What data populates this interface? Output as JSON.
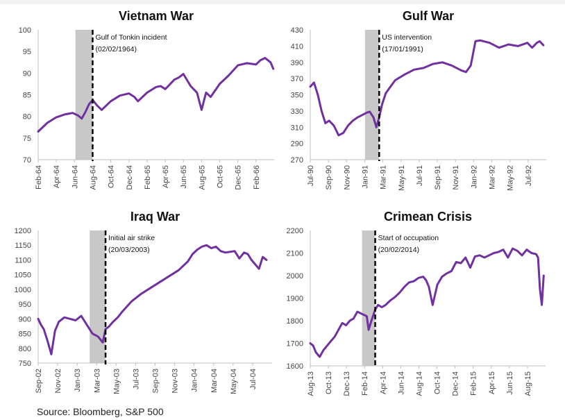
{
  "source": "Source: Bloomberg, S&P 500",
  "colors": {
    "line": "#7030a0",
    "shade": "#c8c8c8",
    "marker": "#000000"
  },
  "chart_data": [
    {
      "type": "line",
      "title": "Vietnam War",
      "ylim": [
        70,
        100
      ],
      "yticks": [
        70,
        75,
        80,
        85,
        90,
        95,
        100
      ],
      "xlim": [
        0,
        26
      ],
      "xticks": [
        "Feb-64",
        "Apr-64",
        "Jun-64",
        "Aug-64",
        "Oct-64",
        "Dec-64",
        "Feb-65",
        "Apr-65",
        "Jun-65",
        "Aug-65",
        "Oct-65",
        "Dec-65",
        "Feb-66"
      ],
      "shade": [
        4.1,
        6.0
      ],
      "event": {
        "x": 6.0,
        "label": "Gulf of Tonkin incident",
        "date": "(02/02/1964)"
      },
      "series": [
        {
          "x": [
            0,
            1,
            2,
            3,
            3.8,
            4.4,
            4.8,
            5.2,
            5.6,
            6,
            6.5,
            7,
            8,
            9,
            10,
            10.6,
            11,
            12,
            13,
            13.5,
            14,
            15,
            15.5,
            16,
            16.8,
            17.5,
            18,
            18.5,
            19,
            20,
            21,
            22,
            23,
            24,
            24.5,
            25,
            25.6,
            25.9
          ],
          "values": [
            76.5,
            78.5,
            79.8,
            80.5,
            80.8,
            80.2,
            79.5,
            81,
            82.8,
            83.8,
            82.5,
            81.5,
            83.5,
            84.8,
            85.3,
            84.5,
            83.5,
            85.5,
            86.8,
            87,
            86.3,
            88.5,
            89,
            89.8,
            87,
            85.5,
            81.5,
            85.5,
            84.5,
            87.5,
            89.5,
            91.8,
            92.3,
            92,
            93,
            93.5,
            92.5,
            91
          ]
        }
      ]
    },
    {
      "type": "line",
      "title": "Gulf War",
      "ylim": [
        270,
        430
      ],
      "yticks": [
        270,
        290,
        310,
        330,
        350,
        370,
        390,
        410,
        430
      ],
      "xlim": [
        0,
        25
      ],
      "xticks": [
        "Jul-90",
        "Sep-90",
        "Nov-90",
        "Jan-91",
        "Mar-91",
        "May-91",
        "Jul-91",
        "Sep-91",
        "Nov-91",
        "Jan-92",
        "Mar-92",
        "May-92",
        "Jul-92"
      ],
      "shade": [
        5.8,
        7.3
      ],
      "event": {
        "x": 7.3,
        "label": "US intervention",
        "date": "(17/01/1991)"
      },
      "series": [
        {
          "x": [
            0,
            0.4,
            0.8,
            1.2,
            1.6,
            2,
            2.5,
            3,
            3.5,
            4,
            4.5,
            5,
            5.5,
            6,
            6.3,
            6.7,
            7,
            7.3,
            7.6,
            8,
            8.5,
            9,
            10,
            11,
            12,
            13,
            14,
            15,
            15.5,
            16,
            16.5,
            17,
            17.5,
            18,
            19,
            20,
            21,
            22,
            23,
            23.5,
            24,
            24.3,
            24.7
          ],
          "values": [
            360,
            365,
            350,
            330,
            315,
            318,
            312,
            300,
            303,
            312,
            318,
            322,
            325,
            328,
            329,
            322,
            310,
            322,
            338,
            352,
            360,
            368,
            375,
            381,
            383,
            388,
            390,
            386,
            383,
            380,
            378,
            386,
            416,
            417,
            414,
            408,
            412,
            410,
            414,
            408,
            414,
            416,
            411
          ]
        }
      ]
    },
    {
      "type": "line",
      "title": "Iraq War",
      "ylim": [
        750,
        1200
      ],
      "yticks": [
        750,
        800,
        850,
        900,
        950,
        1000,
        1050,
        1100,
        1150,
        1200
      ],
      "xlim": [
        0,
        25
      ],
      "xticks": [
        "Sep-02",
        "Nov-02",
        "Jan-03",
        "Mar-03",
        "May-03",
        "Jul-03",
        "Sep-03",
        "Nov-03",
        "Jan-04",
        "Mar-04",
        "May-04",
        "Jul-04"
      ],
      "shade": [
        5.5,
        7.2
      ],
      "event": {
        "x": 7.2,
        "label": "Initial air strike",
        "date": "(20/03/2003)"
      },
      "series": [
        {
          "x": [
            0,
            0.3,
            0.6,
            1,
            1.4,
            1.8,
            2.2,
            2.8,
            3.4,
            4,
            4.6,
            5.2,
            5.8,
            6.4,
            6.9,
            7.2,
            7.6,
            8,
            8.5,
            9,
            10,
            11,
            12,
            13,
            14,
            15,
            16,
            16.5,
            17,
            17.5,
            18,
            18.5,
            19,
            19.5,
            20,
            21,
            21.5,
            22,
            22.4,
            22.8,
            23.2,
            23.6,
            24,
            24.4
          ],
          "values": [
            900,
            880,
            865,
            825,
            780,
            860,
            890,
            905,
            900,
            895,
            910,
            880,
            850,
            840,
            820,
            865,
            875,
            890,
            905,
            925,
            960,
            985,
            1005,
            1025,
            1045,
            1065,
            1095,
            1120,
            1135,
            1145,
            1150,
            1140,
            1145,
            1130,
            1125,
            1130,
            1105,
            1125,
            1120,
            1100,
            1085,
            1070,
            1110,
            1100
          ]
        }
      ]
    },
    {
      "type": "line",
      "title": "Crimean Crisis",
      "ylim": [
        1600,
        2200
      ],
      "yticks": [
        1600,
        1700,
        1800,
        1900,
        2000,
        2100,
        2200
      ],
      "xlim": [
        0,
        25
      ],
      "xticks": [
        "Aug-13",
        "Oct-13",
        "Dec-13",
        "Feb-14",
        "Apr-14",
        "Jun-14",
        "Aug-14",
        "Oct-14",
        "Dec-14",
        "Feb-15",
        "Apr-15",
        "Jun-15",
        "Aug-15"
      ],
      "shade": [
        5.5,
        6.9
      ],
      "event": {
        "x": 6.9,
        "label": "Start of occupation",
        "date": "(20/02/2014)"
      },
      "series": [
        {
          "x": [
            0,
            0.3,
            0.6,
            1,
            1.4,
            1.8,
            2.2,
            2.6,
            3,
            3.4,
            3.8,
            4.2,
            4.6,
            5,
            5.5,
            6,
            6.2,
            6.5,
            6.9,
            7.2,
            7.6,
            8,
            8.5,
            9,
            9.5,
            10,
            10.5,
            11,
            11.5,
            12,
            12.3,
            12.6,
            13,
            13.5,
            14,
            14.5,
            15,
            15.5,
            16,
            16.5,
            17,
            17.5,
            18,
            18.5,
            19,
            19.5,
            20,
            20.5,
            21,
            21.5,
            22,
            22.5,
            23,
            23.5,
            24,
            24.2,
            24.4,
            24.6,
            24.8
          ],
          "values": [
            1700,
            1690,
            1660,
            1640,
            1670,
            1690,
            1710,
            1730,
            1760,
            1790,
            1780,
            1800,
            1810,
            1840,
            1830,
            1820,
            1760,
            1800,
            1850,
            1870,
            1860,
            1870,
            1890,
            1905,
            1925,
            1950,
            1970,
            1975,
            1990,
            1995,
            1980,
            1950,
            1870,
            1960,
            1995,
            2010,
            2020,
            2060,
            2055,
            2080,
            2035,
            2085,
            2090,
            2080,
            2090,
            2100,
            2105,
            2115,
            2080,
            2120,
            2110,
            2090,
            2115,
            2100,
            2095,
            2080,
            1940,
            1870,
            2000
          ]
        }
      ]
    }
  ]
}
